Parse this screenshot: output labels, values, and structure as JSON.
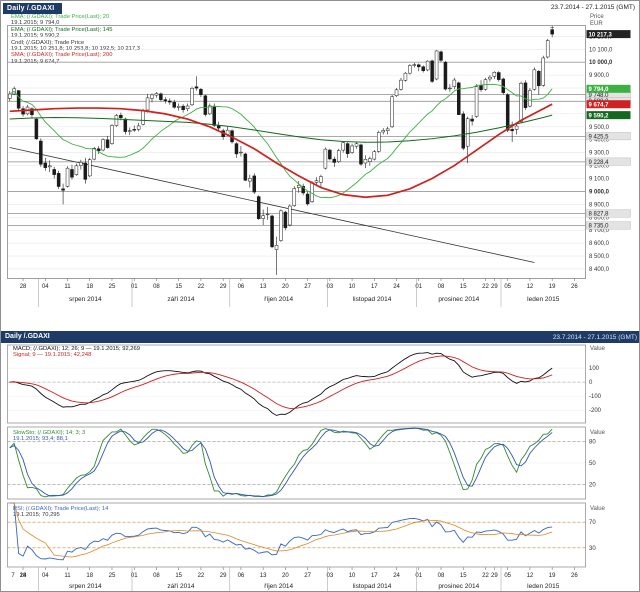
{
  "window": {
    "top_header": {
      "title": "Daily /.GDAXI",
      "range": "23.7.2014 - 27.1.2015 (GMT)"
    },
    "bottom_header": {
      "title": "Daily /.GDAXI",
      "range": "23.7.2014 - 27.1.2015 (GMT)"
    }
  },
  "main_axis_title": {
    "line1": "Price",
    "line2": "EUR"
  },
  "panel_axis_title": "Value",
  "legend_main": [
    {
      "color": "#3cb043",
      "text": "EMA; (/.GDAXI); Trade Price(Last); 20"
    },
    {
      "color": "#333333",
      "text": "19.1.2015; 9 794,0"
    },
    {
      "color": "#14691e",
      "text": "EMA; (/.GDAXI); Trade Price(Last); 145"
    },
    {
      "color": "#333333",
      "text": "19.1.2015; 9 590,2"
    },
    {
      "color": "#333333",
      "text": "Cndl; (/.GDAXI); Trade Price"
    },
    {
      "color": "#333333",
      "text": "19.1.2015; 10 251,8; 10 253,8; 10 192,5; 10 217,3"
    },
    {
      "color": "#d02020",
      "text": "SMA; (/.GDAXI); Trade Price(Last); 200"
    },
    {
      "color": "#333333",
      "text": "19.1.2015; 9 674,7"
    }
  ],
  "legend_macd": [
    {
      "color": "#111111",
      "text": "MACD; (/.GDAXI); 12; 26; 9 — 19.1.2015; 92,269"
    },
    {
      "color": "#cc2222",
      "text": "Signal; 9 — 19.1.2015; 42,248"
    }
  ],
  "legend_stoch": [
    {
      "color": "#2e8b2e",
      "text": "SlowSto; (/.GDAXI); 14; 3; 3"
    },
    {
      "color": "#3355bb",
      "text": "19.1.2015; 93,4; 88,1"
    }
  ],
  "legend_rsi": [
    {
      "color": "#3366cc",
      "text": "RSI; (/.GDAXI); Trade Price(Last); 14"
    },
    {
      "color": "#333333",
      "text": "19.1.2015; 70,295"
    }
  ],
  "chart_data": [
    {
      "type": "candlestick",
      "title": "Daily /.GDAXI",
      "symbol": "/.GDAXI",
      "interval": "Daily",
      "start_date": "23.7.2014",
      "last_data_date": "19.1.2015",
      "axis_end_date": "27.1.2015",
      "ylabel": "Price EUR",
      "ylim": [
        8330,
        10280
      ],
      "y_ticks": [
        10200,
        10100,
        10000,
        9900,
        9800,
        9700,
        9600,
        9500,
        9400,
        9300,
        9200,
        9100,
        9000,
        8900,
        8800,
        8700,
        8600,
        8500,
        8400
      ],
      "bold_ticks": [
        10000,
        9000
      ],
      "n_slots": 130,
      "last_price_marker": 10217.3,
      "levels": [
        9748.0,
        9698.0,
        9425.5,
        9228.4,
        8827.8,
        8735.0
      ],
      "trendline": {
        "from_bar": 0,
        "from_value": 9340,
        "to_bar": 118,
        "to_value": 8450
      },
      "overlays": [
        {
          "name": "MA20",
          "type": "sma",
          "period": 20,
          "color": "#3cb043",
          "label_value": 9794.0
        },
        {
          "name": "MA145",
          "color": "#14691e",
          "label_value": 9590.2,
          "bars": [
            0,
            5,
            10,
            15,
            20,
            25,
            30,
            35,
            40,
            45,
            50,
            55,
            60,
            65,
            70,
            75,
            80,
            85,
            90,
            95,
            100,
            105,
            110,
            115,
            120,
            122
          ],
          "values": [
            9560,
            9568,
            9572,
            9570,
            9565,
            9558,
            9550,
            9542,
            9534,
            9520,
            9500,
            9475,
            9448,
            9422,
            9400,
            9386,
            9380,
            9382,
            9392,
            9408,
            9430,
            9458,
            9492,
            9530,
            9572,
            9590
          ]
        },
        {
          "name": "MA200",
          "color": "#d02020",
          "label_value": 9674.7,
          "bars": [
            0,
            5,
            10,
            15,
            20,
            25,
            30,
            35,
            40,
            45,
            50,
            55,
            60,
            65,
            70,
            75,
            80,
            85,
            90,
            95,
            100,
            105,
            110,
            115,
            120,
            122
          ],
          "values": [
            9620,
            9630,
            9640,
            9645,
            9645,
            9640,
            9625,
            9600,
            9560,
            9500,
            9420,
            9330,
            9220,
            9120,
            9030,
            8975,
            8955,
            8970,
            9020,
            9100,
            9200,
            9320,
            9440,
            9550,
            9640,
            9675
          ]
        }
      ],
      "x_day_ticks": [
        [
          "28",
          3
        ],
        [
          "04",
          8
        ],
        [
          "11",
          13
        ],
        [
          "18",
          18
        ],
        [
          "25",
          23
        ],
        [
          "01",
          28
        ],
        [
          "08",
          33
        ],
        [
          "15",
          38
        ],
        [
          "22",
          43
        ],
        [
          "29",
          48
        ],
        [
          "06",
          52
        ],
        [
          "13",
          57
        ],
        [
          "20",
          62
        ],
        [
          "27",
          67
        ],
        [
          "03",
          72
        ],
        [
          "10",
          77
        ],
        [
          "17",
          82
        ],
        [
          "24",
          87
        ],
        [
          "01",
          92
        ],
        [
          "08",
          97
        ],
        [
          "15",
          102
        ],
        [
          "22",
          107
        ],
        [
          "29",
          109
        ],
        [
          "05",
          112
        ],
        [
          "12",
          117
        ],
        [
          "19",
          122
        ],
        [
          "26",
          127
        ]
      ],
      "x_months": [
        [
          "srpen 2014",
          7,
          28
        ],
        [
          "září 2014",
          28,
          50
        ],
        [
          "říjen 2014",
          50,
          72
        ],
        [
          "listopad 2014",
          72,
          92
        ],
        [
          "prosinec 2014",
          92,
          111
        ],
        [
          "leden 2015",
          111,
          130
        ]
      ],
      "extra_left_ticks": [
        [
          "7",
          6
        ],
        [
          "14",
          16
        ]
      ],
      "ohlc": [
        [
          9720,
          9776,
          9700,
          9754
        ],
        [
          9754,
          9812,
          9744,
          9794
        ],
        [
          9780,
          9785,
          9630,
          9644
        ],
        [
          9640,
          9660,
          9580,
          9598
        ],
        [
          9600,
          9670,
          9590,
          9653
        ],
        [
          9640,
          9650,
          9570,
          9593
        ],
        [
          9560,
          9570,
          9400,
          9407
        ],
        [
          9390,
          9410,
          9190,
          9210
        ],
        [
          9220,
          9260,
          9160,
          9184
        ],
        [
          9190,
          9240,
          9150,
          9198
        ],
        [
          9170,
          9190,
          9100,
          9130
        ],
        [
          9140,
          9160,
          9020,
          9038
        ],
        [
          9020,
          9060,
          8900,
          9009
        ],
        [
          9040,
          9195,
          9030,
          9180
        ],
        [
          9170,
          9205,
          9090,
          9110
        ],
        [
          9130,
          9215,
          9120,
          9198
        ],
        [
          9200,
          9245,
          9170,
          9225
        ],
        [
          9220,
          9260,
          9060,
          9093
        ],
        [
          9120,
          9260,
          9110,
          9245
        ],
        [
          9250,
          9345,
          9240,
          9334
        ],
        [
          9330,
          9350,
          9290,
          9314
        ],
        [
          9320,
          9410,
          9310,
          9401
        ],
        [
          9400,
          9430,
          9330,
          9339
        ],
        [
          9370,
          9520,
          9360,
          9510
        ],
        [
          9510,
          9600,
          9500,
          9588
        ],
        [
          9590,
          9610,
          9550,
          9570
        ],
        [
          9560,
          9570,
          9440,
          9463
        ],
        [
          9470,
          9495,
          9435,
          9470
        ],
        [
          9480,
          9510,
          9460,
          9479
        ],
        [
          9480,
          9530,
          9465,
          9507
        ],
        [
          9520,
          9640,
          9510,
          9626
        ],
        [
          9630,
          9755,
          9610,
          9724
        ],
        [
          9720,
          9760,
          9690,
          9747
        ],
        [
          9745,
          9770,
          9725,
          9758
        ],
        [
          9755,
          9765,
          9695,
          9710
        ],
        [
          9710,
          9730,
          9680,
          9700
        ],
        [
          9700,
          9720,
          9670,
          9691
        ],
        [
          9690,
          9710,
          9640,
          9651
        ],
        [
          9650,
          9680,
          9625,
          9659
        ],
        [
          9660,
          9675,
          9610,
          9632
        ],
        [
          9640,
          9680,
          9620,
          9661
        ],
        [
          9670,
          9810,
          9660,
          9798
        ],
        [
          9810,
          9891,
          9780,
          9799
        ],
        [
          9790,
          9800,
          9730,
          9749
        ],
        [
          9740,
          9750,
          9580,
          9595
        ],
        [
          9600,
          9680,
          9590,
          9662
        ],
        [
          9660,
          9680,
          9500,
          9510
        ],
        [
          9510,
          9540,
          9470,
          9490
        ],
        [
          9470,
          9485,
          9400,
          9423
        ],
        [
          9440,
          9500,
          9430,
          9474
        ],
        [
          9470,
          9480,
          9370,
          9383
        ],
        [
          9370,
          9380,
          9260,
          9290
        ],
        [
          9300,
          9350,
          9270,
          9304
        ],
        [
          9290,
          9300,
          9080,
          9086
        ],
        [
          9080,
          9130,
          9030,
          9101
        ],
        [
          9120,
          9140,
          8980,
          8995
        ],
        [
          8960,
          8970,
          8780,
          8789
        ],
        [
          8790,
          8860,
          8740,
          8812
        ],
        [
          8820,
          8880,
          8780,
          8825
        ],
        [
          8810,
          8820,
          8560,
          8571
        ],
        [
          8550,
          8650,
          8354,
          8583
        ],
        [
          8620,
          8860,
          8610,
          8850
        ],
        [
          8840,
          8850,
          8700,
          8718
        ],
        [
          8740,
          8900,
          8730,
          8887
        ],
        [
          8890,
          9040,
          8880,
          9022
        ],
        [
          9030,
          9080,
          8990,
          9047
        ],
        [
          9040,
          9060,
          8970,
          8988
        ],
        [
          8980,
          9000,
          8890,
          8903
        ],
        [
          8920,
          9080,
          8910,
          9068
        ],
        [
          9070,
          9110,
          9040,
          9083
        ],
        [
          9070,
          9130,
          9035,
          9115
        ],
        [
          9180,
          9340,
          9170,
          9327
        ],
        [
          9320,
          9330,
          9240,
          9251
        ],
        [
          9250,
          9270,
          9190,
          9224
        ],
        [
          9230,
          9330,
          9220,
          9316
        ],
        [
          9320,
          9390,
          9300,
          9377
        ],
        [
          9370,
          9380,
          9260,
          9292
        ],
        [
          9300,
          9370,
          9290,
          9352
        ],
        [
          9350,
          9385,
          9330,
          9369
        ],
        [
          9360,
          9370,
          9200,
          9211
        ],
        [
          9220,
          9280,
          9180,
          9249
        ],
        [
          9230,
          9270,
          9200,
          9253
        ],
        [
          9250,
          9320,
          9240,
          9307
        ],
        [
          9310,
          9470,
          9300,
          9457
        ],
        [
          9460,
          9490,
          9440,
          9472
        ],
        [
          9470,
          9500,
          9440,
          9484
        ],
        [
          9500,
          9750,
          9490,
          9733
        ],
        [
          9740,
          9800,
          9730,
          9786
        ],
        [
          9790,
          9880,
          9780,
          9861
        ],
        [
          9860,
          9925,
          9850,
          9915
        ],
        [
          9915,
          9985,
          9905,
          9974
        ],
        [
          9975,
          9995,
          9960,
          9981
        ],
        [
          9980,
          9990,
          9930,
          9964
        ],
        [
          9965,
          9975,
          9920,
          9934
        ],
        [
          9940,
          10015,
          9930,
          10008
        ],
        [
          10010,
          10020,
          9840,
          9851
        ],
        [
          9870,
          10093,
          9860,
          10087
        ],
        [
          10080,
          10090,
          10000,
          10014
        ],
        [
          10000,
          10010,
          9780,
          9792
        ],
        [
          9800,
          9830,
          9770,
          9800
        ],
        [
          9810,
          9880,
          9790,
          9862
        ],
        [
          9840,
          9850,
          9590,
          9594
        ],
        [
          9600,
          9620,
          9320,
          9334
        ],
        [
          9350,
          9580,
          9219,
          9563
        ],
        [
          9560,
          9590,
          9510,
          9544
        ],
        [
          9580,
          9830,
          9570,
          9811
        ],
        [
          9820,
          9860,
          9770,
          9787
        ],
        [
          9790,
          9880,
          9780,
          9865
        ],
        [
          9870,
          9900,
          9850,
          9884
        ],
        [
          9890,
          9930,
          9870,
          9922
        ],
        [
          9920,
          9930,
          9850,
          9865
        ],
        [
          9870,
          9880,
          9750,
          9764
        ],
        [
          9750,
          9760,
          9460,
          9473
        ],
        [
          9480,
          9540,
          9382,
          9469
        ],
        [
          9480,
          9530,
          9440,
          9506
        ],
        [
          9540,
          9850,
          9530,
          9837
        ],
        [
          9840,
          9860,
          9630,
          9648
        ],
        [
          9660,
          9800,
          9650,
          9781
        ],
        [
          9790,
          9960,
          9780,
          9941
        ],
        [
          9930,
          9940,
          9750,
          9817
        ],
        [
          9820,
          10050,
          9810,
          10033
        ],
        [
          10040,
          10180,
          10030,
          10167
        ],
        [
          10252,
          10254,
          10193,
          10217
        ]
      ]
    },
    {
      "type": "line",
      "name": "MACD",
      "params": [
        12,
        26,
        9
      ],
      "ticks": [
        100,
        0,
        -100,
        -200
      ],
      "dashed_levels": [
        0
      ],
      "colors": {
        "macd": "#111111",
        "signal": "#cc2222"
      }
    },
    {
      "type": "line",
      "name": "SlowSto",
      "params": [
        14,
        3,
        3
      ],
      "range": [
        0,
        100
      ],
      "ticks": [
        80,
        50,
        20
      ],
      "dashed_levels": [
        80,
        20
      ],
      "colors": {
        "k": "#2e8b2e",
        "d": "#3355bb"
      }
    },
    {
      "type": "line",
      "name": "RSI",
      "params": [
        14
      ],
      "range": [
        0,
        100
      ],
      "ticks": [
        70,
        30
      ],
      "dashed_levels": [
        70,
        30
      ],
      "colors": {
        "rsi": "#3366cc",
        "signal": "#dd8822",
        "bands": "#cc8833"
      }
    }
  ]
}
